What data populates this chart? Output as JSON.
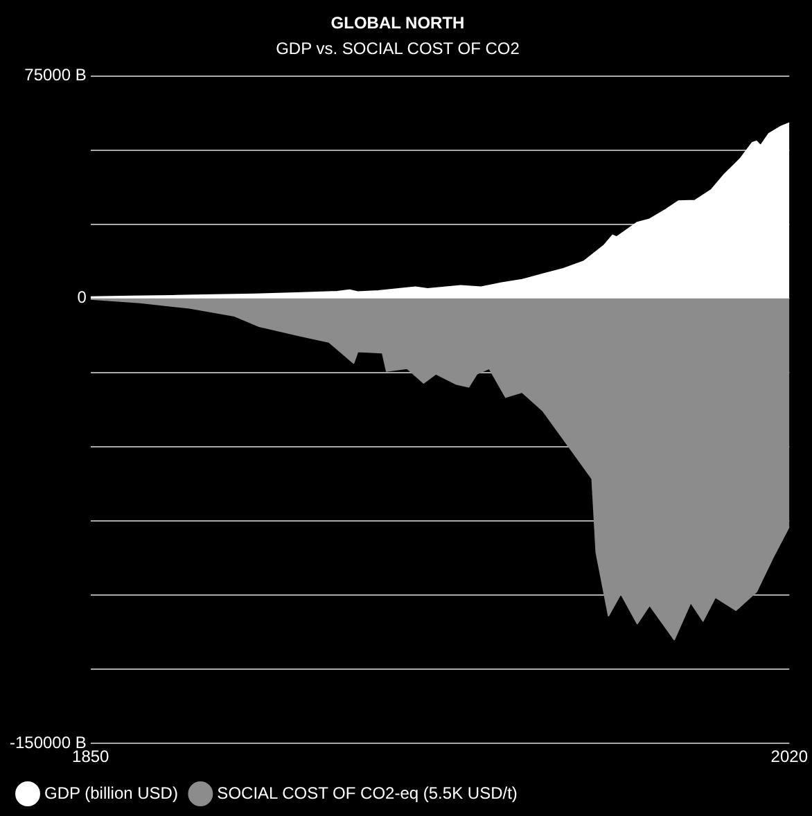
{
  "chart_data": {
    "type": "area",
    "title": "GLOBAL NORTH",
    "subtitle": "GDP vs. SOCIAL COST OF CO2",
    "xlim": [
      1850,
      2020
    ],
    "xticks": [
      1850,
      2020
    ],
    "ylim": [
      -150000,
      75000
    ],
    "yticks": [
      {
        "value": -150000,
        "label": "-150000 B"
      },
      {
        "value": -125000,
        "label": null
      },
      {
        "value": -100000,
        "label": null
      },
      {
        "value": -75000,
        "label": null
      },
      {
        "value": -50000,
        "label": null
      },
      {
        "value": -25000,
        "label": null
      },
      {
        "value": 0,
        "label": "0"
      },
      {
        "value": 25000,
        "label": null
      },
      {
        "value": 50000,
        "label": null
      },
      {
        "value": 75000,
        "label": "75000 B"
      }
    ],
    "grid": "y",
    "legend": "bottom left",
    "series": [
      {
        "name": "GDP (billion USD)",
        "color": "#ffffff",
        "x": [
          1850,
          1860,
          1870,
          1880,
          1890,
          1900,
          1910,
          1913,
          1915,
          1920,
          1929,
          1932,
          1940,
          1945,
          1950,
          1955,
          1960,
          1965,
          1970,
          1975,
          1977,
          1978,
          1983,
          1986,
          1990,
          1993,
          1997,
          2001,
          2004,
          2008,
          2011,
          2012,
          2013,
          2015,
          2018,
          2020
        ],
        "values": [
          500,
          700,
          900,
          1200,
          1400,
          1800,
          2300,
          2800,
          2200,
          2500,
          3800,
          3200,
          4300,
          3800,
          5200,
          6300,
          8200,
          10000,
          12500,
          18000,
          21300,
          20700,
          25600,
          26700,
          30000,
          32800,
          33000,
          36600,
          41500,
          47000,
          52500,
          53000,
          51500,
          55500,
          58000,
          59100
        ]
      },
      {
        "name": "SOCIAL COST OF CO2-eq (5.5K USD/t)",
        "color": "#8c8c8c",
        "x": [
          1850,
          1862,
          1874,
          1885,
          1891,
          1901,
          1908,
          1914,
          1915,
          1921,
          1922,
          1927,
          1931,
          1934,
          1939,
          1942,
          1944,
          1947,
          1951,
          1955,
          1960,
          1966,
          1972,
          1973,
          1976,
          1979,
          1983,
          1986,
          1992,
          1996,
          1999,
          2002,
          2007,
          2012,
          2016,
          2020
        ],
        "values": [
          -200,
          -1400,
          -3200,
          -5900,
          -9400,
          -12600,
          -14700,
          -21800,
          -17900,
          -18300,
          -24500,
          -23600,
          -28500,
          -25400,
          -28900,
          -29800,
          -25400,
          -23600,
          -33300,
          -31600,
          -37800,
          -49300,
          -60800,
          -85600,
          -107000,
          -99500,
          -109600,
          -103400,
          -115000,
          -102500,
          -108700,
          -100700,
          -105100,
          -98900,
          -87400,
          -76800
        ]
      }
    ]
  }
}
